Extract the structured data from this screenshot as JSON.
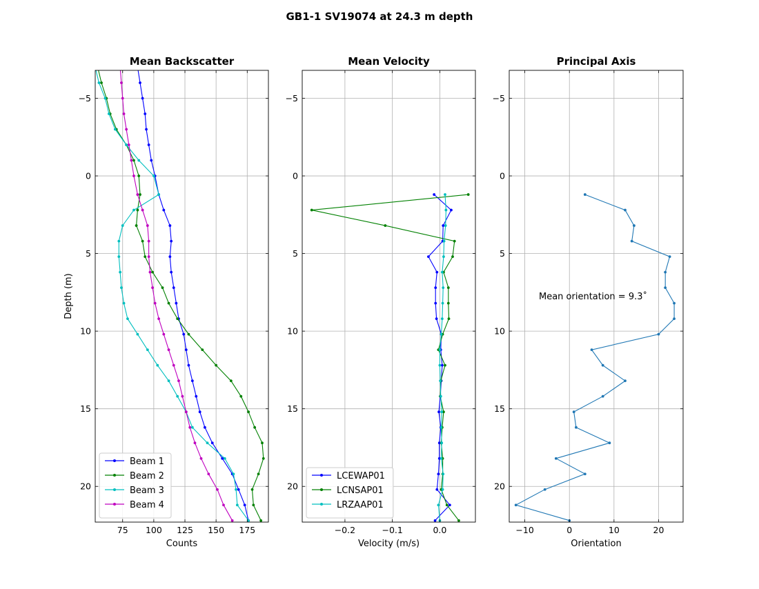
{
  "figure": {
    "title": "GB1-1 SV19074 at 24.3 m depth"
  },
  "chart_data": [
    {
      "type": "line",
      "title": "Mean Backscatter",
      "xlabel": "Counts",
      "ylabel": "Depth (m)",
      "xlim": [
        53,
        192
      ],
      "ylim": [
        22.3,
        -6.8
      ],
      "xticks": [
        75,
        100,
        125,
        150,
        175
      ],
      "yticks": [
        -5,
        0,
        5,
        10,
        15,
        20
      ],
      "grid": true,
      "legend": "lower-left",
      "x_is_value": true,
      "depths": [
        -7.0,
        -6.0,
        -5.0,
        -4.0,
        -3.0,
        -2.0,
        -1.0,
        0.0,
        1.2,
        2.2,
        3.2,
        4.2,
        5.2,
        6.2,
        7.2,
        8.2,
        9.2,
        10.2,
        11.2,
        12.2,
        13.2,
        14.2,
        15.2,
        16.2,
        17.2,
        18.2,
        19.2,
        20.2,
        21.2,
        22.2
      ],
      "series": [
        {
          "name": "Beam 1",
          "color": "#0000ff",
          "values": [
            87,
            89,
            91,
            93,
            94,
            96,
            98,
            101,
            104,
            108,
            113,
            114,
            113,
            114,
            116,
            118,
            120,
            124,
            126,
            128,
            131,
            134,
            137,
            141,
            147,
            155,
            163,
            168,
            173,
            176
          ]
        },
        {
          "name": "Beam 2",
          "color": "#008000",
          "values": [
            55,
            58,
            62,
            65,
            70,
            78,
            84,
            88,
            89,
            87,
            86,
            91,
            93,
            99,
            107,
            112,
            119,
            128,
            139,
            150,
            162,
            170,
            176,
            181,
            187,
            188,
            184,
            179,
            180,
            186
          ]
        },
        {
          "name": "Beam 3",
          "color": "#00bfbf",
          "values": [
            53,
            56,
            61,
            64,
            69,
            78,
            88,
            100,
            104,
            84,
            75,
            72,
            72,
            73,
            74,
            76,
            79,
            87,
            95,
            103,
            112,
            119,
            126,
            131,
            143,
            157,
            164,
            166,
            167,
            176
          ]
        },
        {
          "name": "Beam 4",
          "color": "#bf00bf",
          "values": [
            73,
            74,
            75,
            76,
            78,
            80,
            82,
            84,
            87,
            91,
            95,
            96,
            96,
            97,
            99,
            101,
            104,
            108,
            112,
            116,
            120,
            123,
            126,
            129,
            133,
            138,
            144,
            151,
            156,
            163
          ]
        }
      ]
    },
    {
      "type": "line",
      "title": "Mean Velocity",
      "xlabel": "Velocity (m/s)",
      "ylabel": "",
      "xlim": [
        -0.29,
        0.075
      ],
      "ylim": [
        22.3,
        -6.8
      ],
      "xticks": [
        -0.2,
        -0.1,
        0.0
      ],
      "xticklabels": [
        "−0.2",
        "−0.1",
        "0.0"
      ],
      "yticks": [
        -5,
        0,
        5,
        10,
        15,
        20
      ],
      "grid": true,
      "legend": "lower-left",
      "x_is_value": true,
      "depths": [
        1.2,
        2.2,
        3.2,
        4.2,
        5.2,
        6.2,
        7.2,
        8.2,
        9.2,
        10.2,
        11.2,
        12.2,
        13.2,
        14.2,
        15.2,
        16.2,
        17.2,
        18.2,
        19.2,
        20.2,
        21.2,
        22.2
      ],
      "series": [
        {
          "name": "LCEWAP01",
          "color": "#0000ff",
          "values": [
            -0.012,
            0.024,
            0.007,
            0.006,
            -0.024,
            -0.006,
            -0.009,
            -0.009,
            -0.007,
            0.003,
            0.002,
            0.005,
            0.003,
            0.001,
            -0.002,
            0.002,
            -0.001,
            -0.001,
            -0.003,
            -0.006,
            0.021,
            -0.01
          ]
        },
        {
          "name": "LCNSAP01",
          "color": "#008000",
          "values": [
            0.06,
            -0.27,
            -0.115,
            0.031,
            0.027,
            0.008,
            0.018,
            0.018,
            0.019,
            0.006,
            -0.003,
            0.011,
            0.002,
            0.001,
            0.008,
            0.005,
            0.003,
            0.006,
            0.006,
            0.003,
            0.015,
            0.04
          ]
        },
        {
          "name": "LRZAAP01",
          "color": "#00bfbf",
          "values": [
            0.011,
            0.013,
            0.012,
            0.009,
            0.008,
            0.005,
            0.007,
            0.006,
            0.005,
            0.003,
            0.0,
            0.0,
            0.001,
            0.002,
            0.004,
            0.003,
            0.004,
            0.003,
            0.007,
            0.006,
            -0.003,
            0.0
          ]
        }
      ]
    },
    {
      "type": "line",
      "title": "Principal Axis",
      "xlabel": "Orientation",
      "ylabel": "",
      "xlim": [
        -13.5,
        25.5
      ],
      "ylim": [
        22.3,
        -6.8
      ],
      "xticks": [
        -10,
        0,
        10,
        20
      ],
      "xticklabels": [
        "−10",
        "0",
        "10",
        "20"
      ],
      "yticks": [
        -5,
        0,
        5,
        10,
        15,
        20
      ],
      "grid": true,
      "annotation": "Mean orientation = 9.3$^{\\circ}$",
      "annotation_display": "Mean orientation = 9.3˚",
      "x_is_value": true,
      "depths": [
        1.2,
        2.2,
        3.2,
        4.2,
        5.2,
        6.2,
        7.2,
        8.2,
        9.2,
        10.2,
        11.2,
        12.2,
        13.2,
        14.2,
        15.2,
        16.2,
        17.2,
        18.2,
        19.2,
        20.2,
        21.2,
        22.2
      ],
      "series": [
        {
          "name": "",
          "color": "#1f77b4",
          "values": [
            3.5,
            12.5,
            14.5,
            14.0,
            22.5,
            21.5,
            21.5,
            23.5,
            23.5,
            20.0,
            5.0,
            7.5,
            12.5,
            7.5,
            1.0,
            1.5,
            9.0,
            -3.0,
            3.5,
            -5.5,
            -12.0,
            0.0
          ]
        }
      ]
    }
  ]
}
